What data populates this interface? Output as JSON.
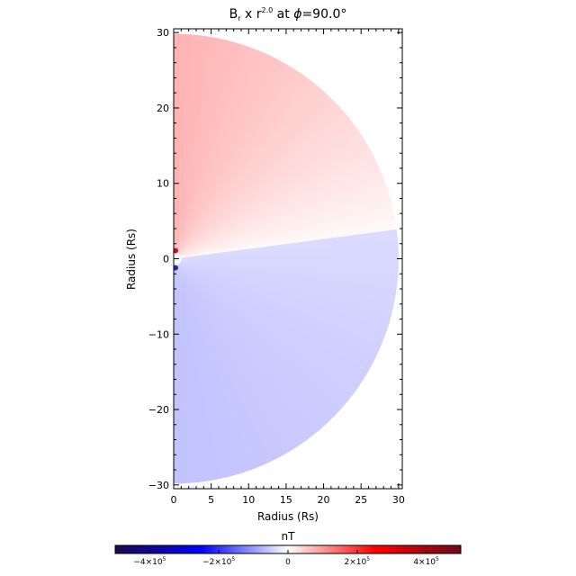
{
  "chart_data": {
    "type": "heatmap",
    "title": {
      "prefix": "B",
      "sub": "r",
      "middle": " x r",
      "sup": "2.0",
      "suffix": " at ",
      "phi": "ϕ",
      "angle": "=90.0°"
    },
    "xlabel": "Radius (Rs)",
    "ylabel": "Radius (Rs)",
    "xlim": [
      0,
      30.5
    ],
    "ylim": [
      -30.5,
      30.5
    ],
    "xticks": [
      0,
      5,
      10,
      15,
      20,
      25,
      30
    ],
    "yticks": [
      30,
      20,
      10,
      0,
      -10,
      -20,
      -30
    ],
    "field": {
      "r_min": 1.0,
      "r_max": 30.0,
      "current_sheet_angle_deg": 7.5,
      "north_value_near": 75000,
      "north_value_far": 5000,
      "south_value_near": -60000,
      "south_value_far": -35000,
      "description_units": "nT"
    },
    "colorbar": {
      "title": "nT",
      "range": [
        -500000,
        500000
      ],
      "ticks": [
        {
          "value": -400000,
          "mant": "−4×10",
          "exp": "5"
        },
        {
          "value": -200000,
          "mant": "−2×10",
          "exp": "5"
        },
        {
          "value": 0,
          "mant": "0",
          "exp": ""
        },
        {
          "value": 200000,
          "mant": "2×10",
          "exp": "5"
        },
        {
          "value": 400000,
          "mant": "4×10",
          "exp": "5"
        }
      ],
      "colors": [
        "#1c0a4a",
        "#0000ff",
        "#ffffff",
        "#ff0000",
        "#6a0a1a"
      ]
    }
  }
}
